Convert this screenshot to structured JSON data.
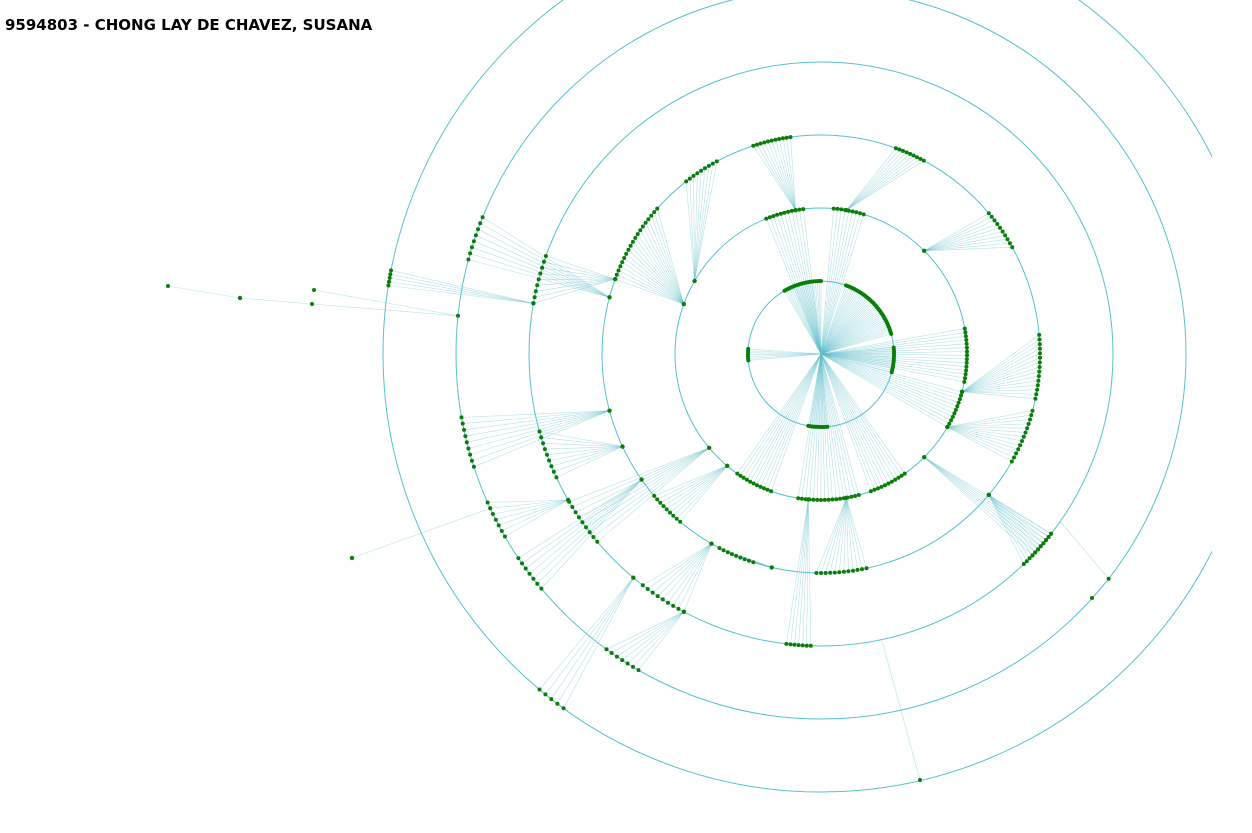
{
  "title": "9594803 - CHONG LAY DE CHAVEZ, SUSANA",
  "colors": {
    "ring": "#56c2cc",
    "edge": "#5fbfc9",
    "node": "#0a7d0a",
    "background": "#ffffff"
  },
  "diagram": {
    "type": "radial-tree",
    "ring_count": 6,
    "layout": "concentric rings around a central root node; green leaf nodes on rings connected by cyan fan edges"
  }
}
